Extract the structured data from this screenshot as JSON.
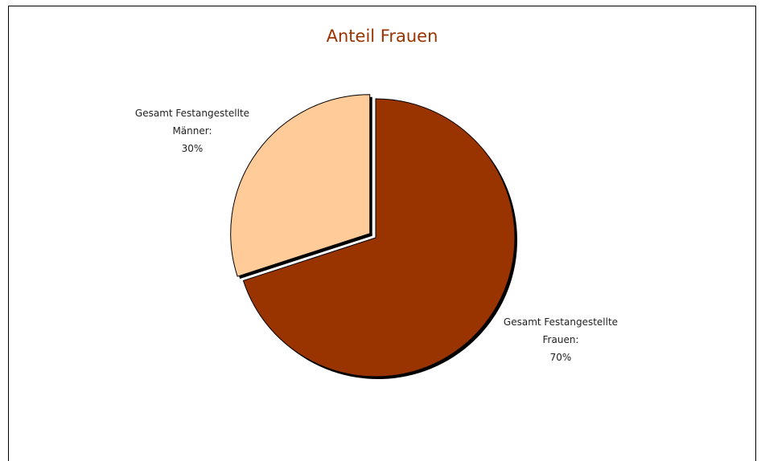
{
  "chart_data": {
    "type": "pie",
    "title": "Anteil Frauen",
    "categories": [
      "Gesamt Festangestellte Frauen:",
      "Gesamt Festangestellte Männer:"
    ],
    "values": [
      70,
      30
    ],
    "value_labels": [
      "70%",
      "30%"
    ],
    "colors": [
      "#993300",
      "#FFCC99"
    ]
  }
}
